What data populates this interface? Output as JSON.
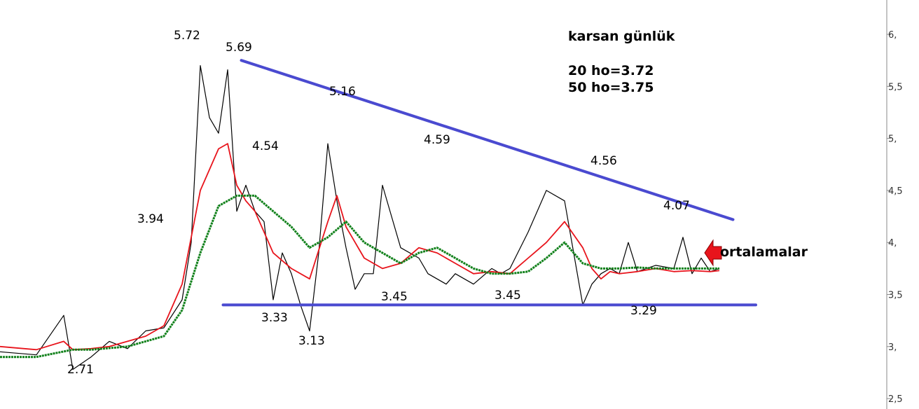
{
  "chart_data": {
    "type": "line",
    "title": "karsan günlük",
    "notes": [
      "20 ho=3.72",
      "50 ho=3.75"
    ],
    "arrow_label": "ortalamalar",
    "y_ticks": [
      "2,5",
      "3,",
      "3,5",
      "4,",
      "4,5",
      "5,",
      "5,5",
      "6,"
    ],
    "y_tick_values": [
      2.5,
      3.0,
      3.5,
      4.0,
      4.5,
      5.0,
      5.5,
      6.0
    ],
    "ylim": [
      2.4,
      6.33
    ],
    "x_range": [
      0,
      100
    ],
    "price_annotations": [
      "5.72",
      "5.69",
      "5.16",
      "4.59",
      "4.56",
      "4.07",
      "4.54",
      "3.94",
      "3.33",
      "3.13",
      "3.45",
      "3.45",
      "3.29",
      "2.71"
    ],
    "trendlines": [
      {
        "name": "upper",
        "from": [
          26.5,
          5.75
        ],
        "to": [
          80.5,
          4.22
        ],
        "color": "#4a4ad0"
      },
      {
        "name": "lower",
        "from": [
          24.5,
          3.4
        ],
        "to": [
          83.0,
          3.4
        ],
        "color": "#4a4ad0"
      }
    ],
    "series": [
      {
        "name": "price",
        "color": "#000000",
        "x": [
          0,
          4,
          7,
          8,
          10,
          12,
          14,
          16,
          18,
          20,
          21,
          22,
          23,
          24,
          25,
          26,
          27,
          28,
          29,
          30,
          31,
          32,
          33,
          34,
          35,
          36,
          37,
          38,
          39,
          40,
          41,
          42,
          44,
          46,
          47,
          49,
          50,
          52,
          54,
          55,
          56,
          58,
          60,
          62,
          64,
          65,
          66,
          67,
          68,
          69,
          70,
          72,
          74,
          75,
          76,
          77,
          78,
          79
        ],
        "y": [
          2.95,
          2.92,
          3.3,
          2.78,
          2.9,
          3.05,
          2.98,
          3.15,
          3.18,
          3.45,
          4.0,
          5.7,
          5.2,
          5.05,
          5.66,
          4.3,
          4.55,
          4.3,
          4.2,
          3.45,
          3.9,
          3.7,
          3.4,
          3.15,
          3.9,
          4.95,
          4.4,
          3.95,
          3.55,
          3.7,
          3.7,
          4.55,
          3.95,
          3.85,
          3.7,
          3.6,
          3.7,
          3.6,
          3.75,
          3.7,
          3.75,
          4.1,
          4.5,
          4.4,
          3.4,
          3.6,
          3.7,
          3.75,
          3.7,
          4.0,
          3.72,
          3.78,
          3.75,
          4.05,
          3.7,
          3.85,
          3.72,
          3.75
        ]
      },
      {
        "name": "20 ho",
        "color": "#e8141c",
        "x": [
          0,
          4,
          7,
          8,
          10,
          12,
          14,
          16,
          18,
          20,
          22,
          24,
          25,
          26,
          27,
          28,
          30,
          32,
          34,
          36,
          37,
          38,
          40,
          42,
          44,
          46,
          48,
          50,
          52,
          54,
          56,
          58,
          60,
          62,
          64,
          65,
          66,
          67,
          68,
          70,
          72,
          74,
          76,
          78,
          79
        ],
        "y": [
          3.0,
          2.97,
          3.05,
          2.97,
          2.98,
          3.0,
          3.05,
          3.1,
          3.2,
          3.6,
          4.5,
          4.9,
          4.95,
          4.55,
          4.4,
          4.3,
          3.9,
          3.75,
          3.65,
          4.2,
          4.45,
          4.15,
          3.85,
          3.75,
          3.8,
          3.95,
          3.9,
          3.8,
          3.7,
          3.72,
          3.7,
          3.85,
          4.0,
          4.2,
          3.95,
          3.75,
          3.65,
          3.72,
          3.7,
          3.72,
          3.75,
          3.72,
          3.73,
          3.72,
          3.73
        ]
      },
      {
        "name": "50 ho",
        "color": "#11811b",
        "x": [
          0,
          4,
          8,
          10,
          14,
          18,
          20,
          22,
          24,
          25,
          26,
          27,
          28,
          30,
          32,
          34,
          36,
          38,
          40,
          42,
          44,
          46,
          48,
          50,
          52,
          54,
          56,
          58,
          60,
          62,
          64,
          66,
          68,
          70,
          72,
          74,
          76,
          78,
          79
        ],
        "y": [
          2.9,
          2.9,
          2.97,
          2.97,
          3.0,
          3.1,
          3.35,
          3.9,
          4.35,
          4.4,
          4.45,
          4.45,
          4.45,
          4.3,
          4.15,
          3.95,
          4.05,
          4.2,
          4.0,
          3.9,
          3.8,
          3.9,
          3.95,
          3.85,
          3.75,
          3.7,
          3.7,
          3.72,
          3.85,
          4.0,
          3.8,
          3.75,
          3.75,
          3.76,
          3.75,
          3.75,
          3.75,
          3.75,
          3.75
        ]
      }
    ]
  }
}
